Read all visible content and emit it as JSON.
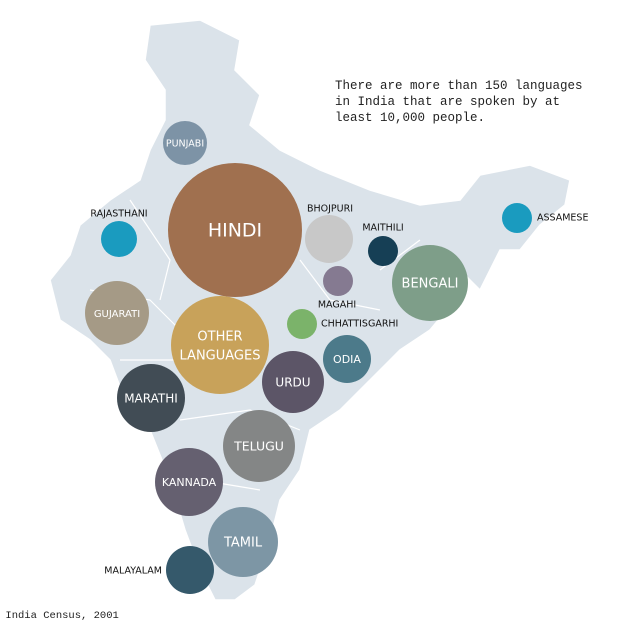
{
  "note": [
    "There are more than 150 languages",
    "in India that are spoken by at",
    "least 10,000 people."
  ],
  "source": "Source: India Census, 2001",
  "languages": [
    "PUNJABI",
    "HINDI",
    "RAJASTHANI",
    "BHOJPURI",
    "MAITHILI",
    "ASSAMESE",
    "BENGALI",
    "MAGAHI",
    "GUJARATI",
    "OTHER",
    "LANGUAGES",
    "CHHATTISGARHI",
    "ODIA",
    "URDU",
    "MARATHI",
    "TELUGU",
    "KANNADA",
    "TAMIL",
    "MALAYALAM"
  ]
}
